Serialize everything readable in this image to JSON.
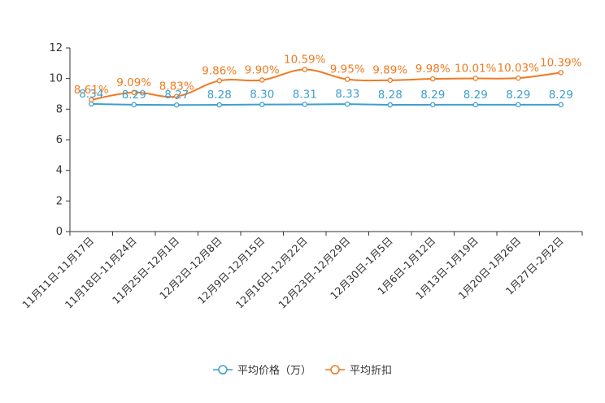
{
  "chart_data": {
    "type": "line",
    "categories": [
      "11月11日-11月17日",
      "11月18日-11月24日",
      "11月25日-12月1日",
      "12月2日-12月8日",
      "12月9日-12月15日",
      "12月16日-12月22日",
      "12月23日-12月29日",
      "12月30日-1月5日",
      "1月6日-1月12日",
      "1月13日-1月19日",
      "1月20日-1月26日",
      "1月27日-2月2日"
    ],
    "series": [
      {
        "name": "平均价格（万）",
        "color": "#3d9fcf",
        "values": [
          8.34,
          8.29,
          8.27,
          8.28,
          8.3,
          8.31,
          8.33,
          8.28,
          8.29,
          8.29,
          8.29,
          8.29
        ],
        "labels": [
          "8.34",
          "8.29",
          "8.27",
          "8.28",
          "8.30",
          "8.31",
          "8.33",
          "8.28",
          "8.29",
          "8.29",
          "8.29",
          "8.29"
        ]
      },
      {
        "name": "平均折扣",
        "color": "#f07a22",
        "values": [
          8.61,
          9.09,
          8.83,
          9.86,
          9.9,
          10.59,
          9.95,
          9.89,
          9.98,
          10.01,
          10.03,
          10.39
        ],
        "labels": [
          "8.61%",
          "9.09%",
          "8.83%",
          "9.86%",
          "9.90%",
          "10.59%",
          "9.95%",
          "9.89%",
          "9.98%",
          "10.01%",
          "10.03%",
          "10.39%"
        ]
      }
    ],
    "ylim": [
      0,
      12
    ],
    "yticks": [
      0,
      2,
      4,
      6,
      8,
      10,
      12
    ],
    "ytick_labels": [
      "0",
      "2",
      "4",
      "6",
      "8",
      "10",
      "12"
    ],
    "title": "",
    "xlabel": "",
    "ylabel": "",
    "grid": false,
    "legend_position": "bottom-center"
  }
}
